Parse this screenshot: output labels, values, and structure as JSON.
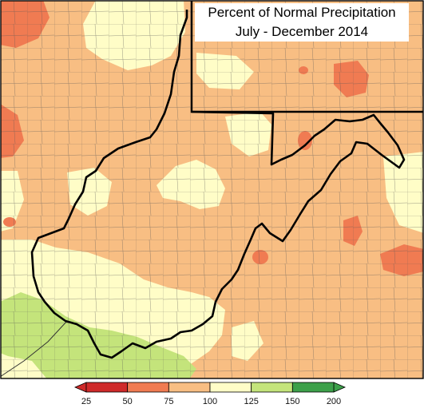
{
  "title": {
    "line1": "Percent of Normal Precipitation",
    "line2": "July - December 2014"
  },
  "legend": {
    "ticks": [
      "25",
      "50",
      "75",
      "100",
      "125",
      "150",
      "200"
    ],
    "colors": [
      "#cf2a2a",
      "#f07b52",
      "#f8be83",
      "#fffdc7",
      "#c4e47b",
      "#3ca04a"
    ]
  }
}
